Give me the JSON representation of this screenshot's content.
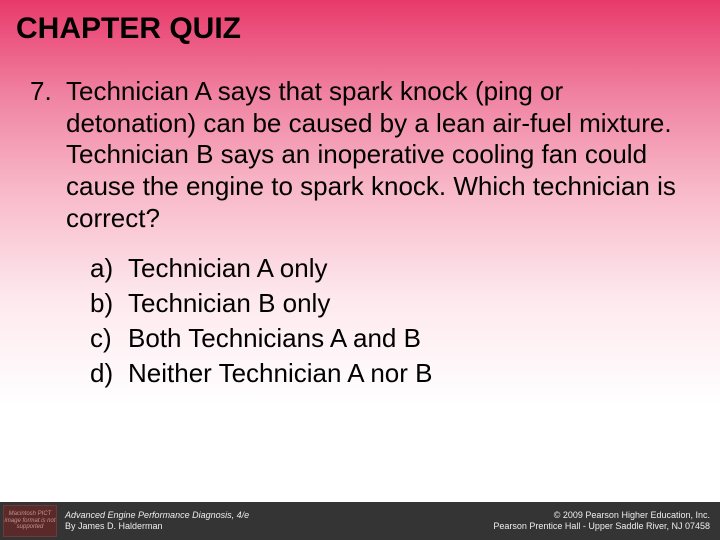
{
  "title": "CHAPTER QUIZ",
  "question": {
    "number": "7.",
    "text": "Technician A says that spark knock (ping or detonation) can be caused by a lean air-fuel mixture. Technician B says an inoperative cooling fan could cause the engine to spark knock. Which technician is correct?"
  },
  "options": [
    {
      "label": "a)",
      "text": "Technician A only"
    },
    {
      "label": "b)",
      "text": "Technician B only"
    },
    {
      "label": "c)",
      "text": "Both Technicians A and B"
    },
    {
      "label": "d)",
      "text": "Neither Technician A nor B"
    }
  ],
  "footer": {
    "imgPlaceholder": "Macintosh PICT image format is not supported",
    "leftLine1": "Advanced Engine Performance Diagnosis, 4/e",
    "leftLine2": "By James D. Halderman",
    "rightLine1": "© 2009 Pearson Higher Education, Inc.",
    "rightLine2": "Pearson Prentice Hall - Upper Saddle River, NJ 07458"
  },
  "colors": {
    "gradientTop": "#e8396a",
    "gradientBottom": "#ffffff",
    "footerBg": "#343434",
    "text": "#000000",
    "footerText": "#eeeeee"
  },
  "typography": {
    "titleSize": 30,
    "bodySize": 26,
    "footerSize": 9,
    "family": "Arial"
  }
}
